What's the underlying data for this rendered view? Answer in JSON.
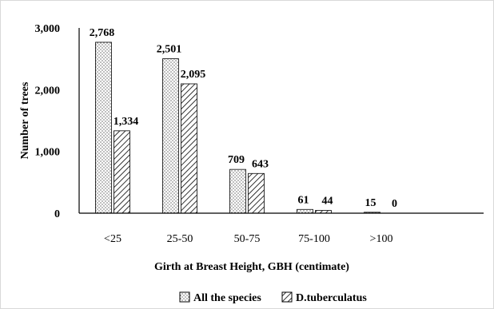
{
  "chart_data": {
    "type": "bar",
    "title": "",
    "xlabel": "Girth at Breast Height, GBH (centimate)",
    "ylabel": "Number of trees",
    "ylim": [
      0,
      3000
    ],
    "yticks": [
      0,
      1000,
      2000,
      3000
    ],
    "ytick_labels": [
      "0",
      "1,000",
      "2,000",
      "3,000"
    ],
    "categories": [
      "<25",
      "25-50",
      "50-75",
      "75-100",
      ">100"
    ],
    "series": [
      {
        "name": "All the species",
        "values": [
          2768,
          2501,
          709,
          61,
          15
        ],
        "labels": [
          "2,768",
          "2,501",
          "709",
          "61",
          "15"
        ],
        "pattern": "dotted"
      },
      {
        "name": "D.tuberculatus",
        "values": [
          1334,
          2095,
          643,
          44,
          0
        ],
        "labels": [
          "1,334",
          "2,095",
          "643",
          "44",
          "0"
        ],
        "pattern": "hatched"
      }
    ],
    "grid": false,
    "legend_position": "bottom",
    "colors": {
      "pattern_fg": "#000000",
      "bar_bg": "#ffffff",
      "axis": "#000000"
    }
  }
}
